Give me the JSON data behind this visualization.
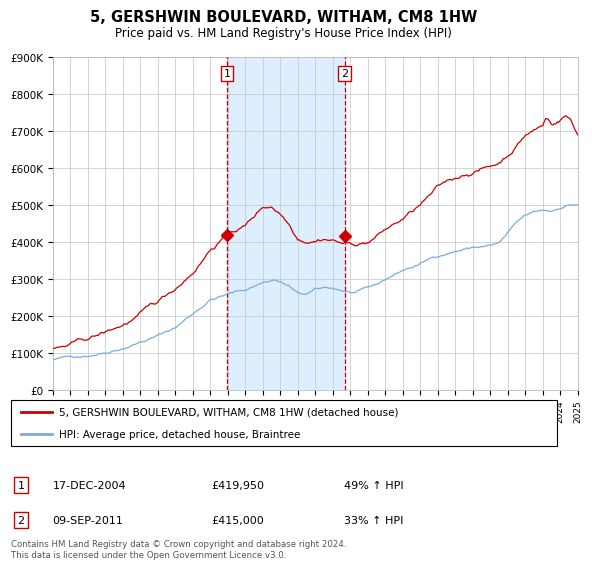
{
  "title": "5, GERSHWIN BOULEVARD, WITHAM, CM8 1HW",
  "subtitle": "Price paid vs. HM Land Registry's House Price Index (HPI)",
  "red_label": "5, GERSHWIN BOULEVARD, WITHAM, CM8 1HW (detached house)",
  "blue_label": "HPI: Average price, detached house, Braintree",
  "sale1_date": "17-DEC-2004",
  "sale1_price": 419950,
  "sale1_hpi": "49% ↑ HPI",
  "sale1_year": 2004.96,
  "sale2_date": "09-SEP-2011",
  "sale2_price": 415000,
  "sale2_hpi": "33% ↑ HPI",
  "sale2_year": 2011.69,
  "ymin": 0,
  "ymax": 900000,
  "xmin": 1995,
  "xmax": 2025,
  "background_color": "#ffffff",
  "shade_color": "#ddeeff",
  "grid_color": "#cccccc",
  "red_color": "#cc0000",
  "blue_color": "#7aaddc",
  "vline_color": "#cc0000",
  "footnote": "Contains HM Land Registry data © Crown copyright and database right 2024.\nThis data is licensed under the Open Government Licence v3.0."
}
